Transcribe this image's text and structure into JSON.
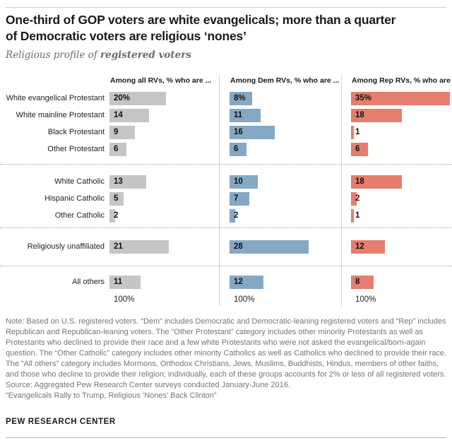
{
  "header": {
    "title_lines": [
      "One-third of GOP voters are white evangelicals; more than a quarter",
      "of Democratic voters are religious ‘nones’"
    ],
    "subtitle_prefix": "Religious profile of ",
    "subtitle_emphasis": "registered voters"
  },
  "chart_data": {
    "type": "bar",
    "orientation": "horizontal",
    "unit": "percent",
    "xlim": [
      0,
      36
    ],
    "grid": false,
    "legend": "column headers",
    "columns": [
      {
        "series": "All RVs",
        "header": "Among all RVs, % who are ...",
        "color": "#c5c5c3"
      },
      {
        "series": "Dem RVs",
        "header": "Among Dem RVs, % who are ...",
        "color": "#85a8c4"
      },
      {
        "series": "Rep RVs",
        "header": "Among Rep RVs, % who are ...",
        "color": "#e57e6e"
      }
    ],
    "groups": [
      {
        "rows": [
          {
            "label": "White evangelical Protestant",
            "values": [
              20,
              8,
              35
            ],
            "value_labels": [
              "20%",
              "8%",
              "35%"
            ]
          },
          {
            "label": "White mainline Protestant",
            "values": [
              14,
              11,
              18
            ],
            "value_labels": [
              "14",
              "11",
              "18"
            ]
          },
          {
            "label": "Black Protestant",
            "values": [
              9,
              16,
              1
            ],
            "value_labels": [
              "9",
              "16",
              "1"
            ]
          },
          {
            "label": "Other Protestant",
            "values": [
              6,
              6,
              6
            ],
            "value_labels": [
              "6",
              "6",
              "6"
            ]
          }
        ]
      },
      {
        "rows": [
          {
            "label": "White Catholic",
            "values": [
              13,
              10,
              18
            ],
            "value_labels": [
              "13",
              "10",
              "18"
            ]
          },
          {
            "label": "Hispanic Catholic",
            "values": [
              5,
              7,
              2
            ],
            "value_labels": [
              "5",
              "7",
              "2"
            ]
          },
          {
            "label": "Other Catholic",
            "values": [
              2,
              2,
              1
            ],
            "value_labels": [
              "2",
              "2",
              "1"
            ]
          }
        ]
      },
      {
        "rows": [
          {
            "label": "Religiously unaffiliated",
            "values": [
              21,
              28,
              12
            ],
            "value_labels": [
              "21",
              "28",
              "12"
            ]
          }
        ]
      },
      {
        "rows": [
          {
            "label": "All others",
            "values": [
              11,
              12,
              8
            ],
            "value_labels": [
              "11",
              "12",
              "8"
            ]
          }
        ]
      },
      "note-column-totals-follow"
    ],
    "column_totals": [
      "100%",
      "100%",
      "100%"
    ]
  },
  "footer": {
    "note": "Note: Based on U.S. registered voters. “Dem” includes Democratic and Democratic-leaning registered voters and “Rep” includes Republican and Republican-leaning voters. The “Other Protestant” category includes other minority Protestants as well as Protestants who declined to provide their race and a few white Protestants who were not asked the evangelical/born-again question. The “Other Catholic” category includes other minority Catholics as well as Catholics who declined to provide their race. The “All others” category includes Mormons, Orthodox Christians, Jews, Muslims, Buddhists, Hindus, members of other faiths, and those who decline to provide their religion; individually, each of these groups accounts for 2% or less of all registered voters.",
    "source": "Source: Aggregated Pew Research Center surveys conducted January-June 2016.",
    "report": "“Evangelicals Rally to Trump, Religious ‘Nones’ Back Clinton”",
    "brand": "PEW RESEARCH CENTER"
  },
  "colors": {
    "bar_gray": "#c5c5c3",
    "bar_blue": "#85a8c4",
    "bar_red": "#e57e6e",
    "divider": "#d4d4d4",
    "text_dark": "#1a1a1a",
    "text_note": "#757575"
  }
}
